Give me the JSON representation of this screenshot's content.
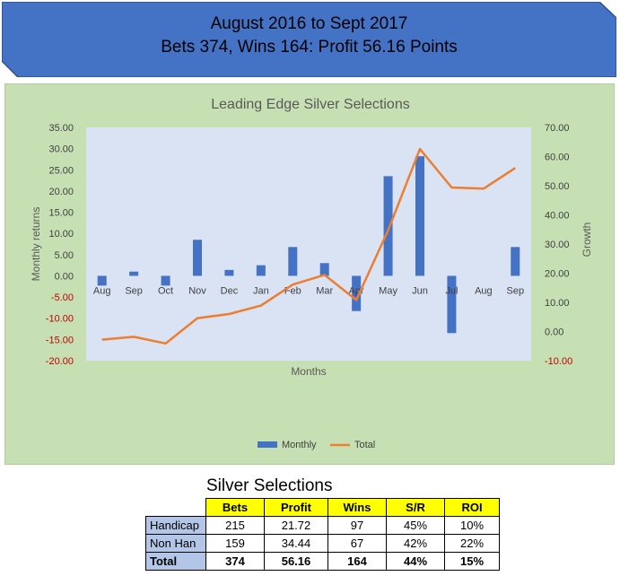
{
  "banner": {
    "line1": "August 2016 to Sept 2017",
    "line2": "Bets 374, Wins 164:  Profit 56.16 Points",
    "fill_color": "#4472c4"
  },
  "chart_data": {
    "type": "bar+line",
    "title": "Leading Edge Silver Selections",
    "xlabel": "Months",
    "ylabel_left": "Monthly returns",
    "ylabel_right": "Growth",
    "categories": [
      "Aug",
      "Sep",
      "Oct",
      "Nov",
      "Dec",
      "Jan",
      "Feb",
      "Mar",
      "Apr",
      "May",
      "Jun",
      "Jul",
      "Aug",
      "Sep"
    ],
    "left_axis": {
      "ylim": [
        -20,
        35
      ],
      "ticks": [
        "35.00",
        "30.00",
        "25.00",
        "20.00",
        "15.00",
        "10.00",
        "5.00",
        "0.00",
        "-5.00",
        "-10.00",
        "-15.00",
        "-20.00"
      ]
    },
    "right_axis": {
      "ylim": [
        -10,
        70
      ],
      "ticks": [
        "70.00",
        "60.00",
        "50.00",
        "40.00",
        "30.00",
        "20.00",
        "10.00",
        "0.00",
        "-10.00"
      ]
    },
    "series": [
      {
        "name": "Monthly",
        "kind": "bar",
        "axis": "left",
        "color": "#4472c4",
        "values": [
          -2.3,
          1.0,
          -2.3,
          8.5,
          1.4,
          2.5,
          6.8,
          3.0,
          -8.3,
          23.5,
          28.2,
          -13.5,
          0,
          6.8
        ]
      },
      {
        "name": "Total",
        "kind": "line",
        "axis": "right",
        "color": "#ed7d31",
        "values": [
          -2.8,
          -1.8,
          -4.1,
          4.6,
          6.0,
          8.9,
          16.1,
          19.4,
          10.8,
          34.7,
          62.6,
          49.4,
          49.0,
          56.1
        ]
      }
    ],
    "legend_position": "bottom",
    "grid": false,
    "plot_bg": "#dae3f3",
    "panel_bg": "#c6e0b4",
    "negative_tick_color": "#c00000"
  },
  "table": {
    "title": "Silver Selections",
    "headers": [
      "Bets",
      "Profit",
      "Wins",
      "S/R",
      "ROI"
    ],
    "rows": [
      {
        "label": "Handicap",
        "values": [
          "215",
          "21.72",
          "97",
          "45%",
          "10%"
        ]
      },
      {
        "label": "Non Han",
        "values": [
          "159",
          "34.44",
          "67",
          "42%",
          "22%"
        ]
      },
      {
        "label": "Total",
        "values": [
          "374",
          "56.16",
          "164",
          "44%",
          "15%"
        ]
      }
    ]
  }
}
